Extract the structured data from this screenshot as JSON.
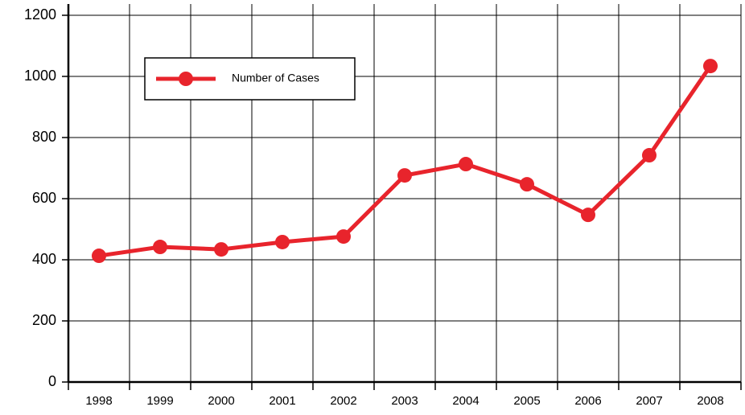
{
  "chart_data": {
    "type": "line",
    "categories": [
      "1998",
      "1999",
      "2000",
      "2001",
      "2002",
      "2003",
      "2004",
      "2005",
      "2006",
      "2007",
      "2008"
    ],
    "series": [
      {
        "name": "Number of Cases",
        "color": "#e8242c",
        "values": [
          413,
          442,
          434,
          458,
          476,
          676,
          713,
          647,
          547,
          742,
          1034
        ]
      }
    ],
    "ylim": [
      0,
      1200
    ],
    "yticks": [
      0,
      200,
      400,
      600,
      800,
      1000,
      1200
    ],
    "grid": true,
    "legend": "upper left"
  }
}
